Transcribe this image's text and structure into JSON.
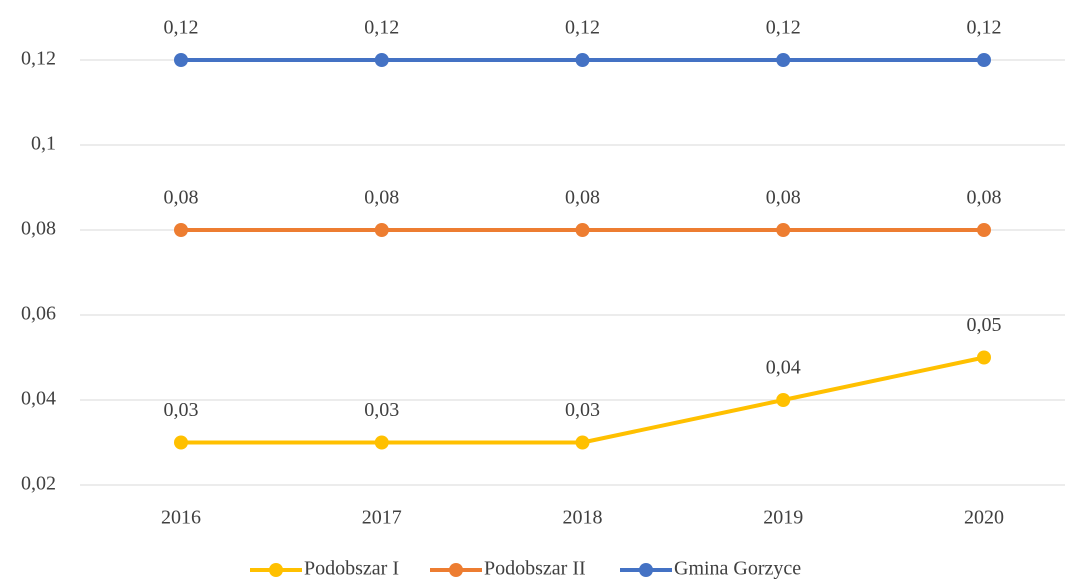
{
  "chart_data": {
    "type": "line",
    "categories": [
      "2016",
      "2017",
      "2018",
      "2019",
      "2020"
    ],
    "series": [
      {
        "name": "Podobszar I",
        "color": "#ffc000",
        "values": [
          0.03,
          0.03,
          0.03,
          0.04,
          0.05
        ],
        "value_labels": [
          "0,03",
          "0,03",
          "0,03",
          "0,04",
          "0,05"
        ]
      },
      {
        "name": "Podobszar II",
        "color": "#ed7d31",
        "values": [
          0.08,
          0.08,
          0.08,
          0.08,
          0.08
        ],
        "value_labels": [
          "0,08",
          "0,08",
          "0,08",
          "0,08",
          "0,08"
        ]
      },
      {
        "name": "Gmina Gorzyce",
        "color": "#4472c4",
        "values": [
          0.12,
          0.12,
          0.12,
          0.12,
          0.12
        ],
        "value_labels": [
          "0,12",
          "0,12",
          "0,12",
          "0,12",
          "0,12"
        ]
      }
    ],
    "ylim": [
      0.02,
      0.12
    ],
    "yticks": [
      {
        "value": 0.02,
        "label": "0,02"
      },
      {
        "value": 0.04,
        "label": "0,04"
      },
      {
        "value": 0.06,
        "label": "0,06"
      },
      {
        "value": 0.08,
        "label": "0,08"
      },
      {
        "value": 0.1,
        "label": "0,1"
      },
      {
        "value": 0.12,
        "label": "0,12"
      }
    ],
    "grid": true
  }
}
